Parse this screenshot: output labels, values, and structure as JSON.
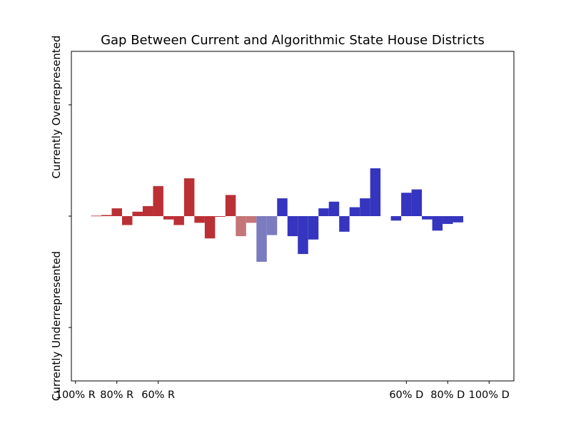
{
  "chart_data": {
    "type": "bar",
    "title": "Gap Between Current and Algorithmic State House Districts",
    "xlabel": "",
    "ylabel_top": "Currently Overrepresented",
    "ylabel_bottom": "Currently Underrepresented",
    "x_ticks": [
      {
        "value": -100,
        "label": "100% R"
      },
      {
        "value": -80,
        "label": "80% R"
      },
      {
        "value": -60,
        "label": "60% R"
      },
      {
        "value": 60,
        "label": "60% D"
      },
      {
        "value": 80,
        "label": "80% D"
      },
      {
        "value": 100,
        "label": "100% D"
      }
    ],
    "x_domain": [
      -102,
      112
    ],
    "ylim": [
      -7.4,
      7.4
    ],
    "y_ticks": [
      -5,
      0,
      5
    ],
    "grid": false,
    "bar_width": 5,
    "colors": {
      "republican": "#bb3035",
      "lean_republican": "#c47577",
      "lean_democrat": "#7b7bbf",
      "democrat": "#3535bf"
    },
    "bars": [
      {
        "x": -90,
        "value": 0.02,
        "party": "republican"
      },
      {
        "x": -85,
        "value": 0.05,
        "party": "republican"
      },
      {
        "x": -80,
        "value": 0.35,
        "party": "republican"
      },
      {
        "x": -75,
        "value": -0.4,
        "party": "republican"
      },
      {
        "x": -70,
        "value": 0.2,
        "party": "republican"
      },
      {
        "x": -65,
        "value": 0.45,
        "party": "republican"
      },
      {
        "x": -60,
        "value": 1.35,
        "party": "republican"
      },
      {
        "x": -55,
        "value": -0.15,
        "party": "republican"
      },
      {
        "x": -50,
        "value": -0.4,
        "party": "republican"
      },
      {
        "x": -45,
        "value": 1.7,
        "party": "republican"
      },
      {
        "x": -40,
        "value": -0.3,
        "party": "republican"
      },
      {
        "x": -35,
        "value": -1.0,
        "party": "republican"
      },
      {
        "x": -30,
        "value": -0.03,
        "party": "republican"
      },
      {
        "x": -25,
        "value": 0.95,
        "party": "republican"
      },
      {
        "x": -20,
        "value": -0.9,
        "party": "lean_republican"
      },
      {
        "x": -15,
        "value": -0.3,
        "party": "lean_republican"
      },
      {
        "x": -10,
        "value": -2.05,
        "party": "lean_democrat"
      },
      {
        "x": -5,
        "value": -0.85,
        "party": "lean_democrat"
      },
      {
        "x": 0,
        "value": 0.8,
        "party": "democrat"
      },
      {
        "x": 5,
        "value": -0.9,
        "party": "democrat"
      },
      {
        "x": 10,
        "value": -1.7,
        "party": "democrat"
      },
      {
        "x": 15,
        "value": -1.05,
        "party": "democrat"
      },
      {
        "x": 20,
        "value": 0.35,
        "party": "democrat"
      },
      {
        "x": 25,
        "value": 0.65,
        "party": "democrat"
      },
      {
        "x": 30,
        "value": -0.7,
        "party": "democrat"
      },
      {
        "x": 35,
        "value": 0.4,
        "party": "democrat"
      },
      {
        "x": 40,
        "value": 0.8,
        "party": "democrat"
      },
      {
        "x": 45,
        "value": 2.15,
        "party": "democrat"
      },
      {
        "x": 55,
        "value": -0.2,
        "party": "democrat"
      },
      {
        "x": 60,
        "value": 1.05,
        "party": "democrat"
      },
      {
        "x": 65,
        "value": 1.2,
        "party": "democrat"
      },
      {
        "x": 70,
        "value": -0.15,
        "party": "democrat"
      },
      {
        "x": 75,
        "value": -0.65,
        "party": "democrat"
      },
      {
        "x": 80,
        "value": -0.35,
        "party": "democrat"
      },
      {
        "x": 85,
        "value": -0.28,
        "party": "democrat"
      }
    ]
  }
}
